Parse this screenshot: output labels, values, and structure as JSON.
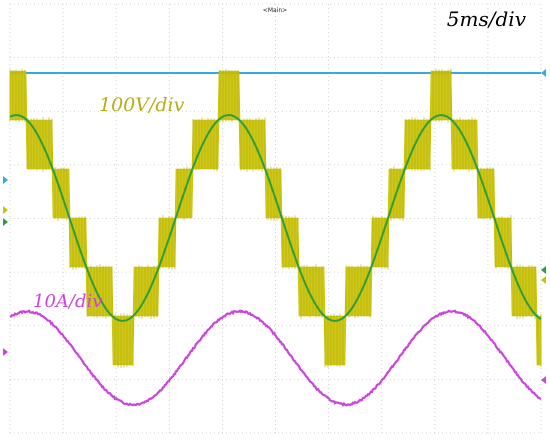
{
  "header_label": "<Main>",
  "timebase_label": "5ms/div",
  "voltage_scale_label": "100V/div",
  "current_scale_label": "10A/div",
  "colors": {
    "grid": "#c8c8c8",
    "reference_line": "#35a9e0",
    "pwm_voltage": "#c9c200",
    "voltage_fundamental": "#2e9e3a",
    "current": "#cc44dd",
    "label_voltage": "#b7ad14",
    "label_current": "#cc44dd",
    "label_time": "#000000"
  },
  "chart_data": {
    "type": "line",
    "grid": true,
    "time_per_division_ms": 5,
    "waveform_period_ms": 20,
    "series": [
      {
        "trace": "pwm-voltage",
        "style": "multilevel-pwm",
        "step_levels_volts": [
          -300,
          -200,
          -100,
          0,
          100,
          200,
          300
        ]
      },
      {
        "trace": "voltage-fundamental",
        "style": "sine",
        "amplitude_volts": 210
      },
      {
        "trace": "current",
        "style": "sine",
        "amplitude_amps": 9.5
      }
    ]
  }
}
